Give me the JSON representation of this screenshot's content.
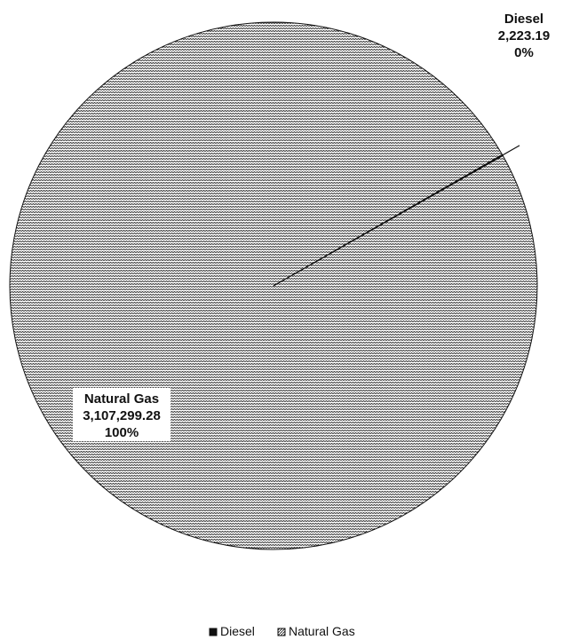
{
  "chart_data": {
    "type": "pie",
    "slices": [
      {
        "name": "Diesel",
        "value": 2223.19,
        "value_label": "2,223.19",
        "percent_label": "0%",
        "fill": "#111111",
        "pattern": "solid"
      },
      {
        "name": "Natural Gas",
        "value": 3107299.28,
        "value_label": "3,107,299.28",
        "percent_label": "100%",
        "fill": "#ffffff",
        "pattern": "horizontal-wave-hatch"
      }
    ],
    "legend": {
      "position": "bottom",
      "items": [
        "Diesel",
        "Natural Gas"
      ]
    },
    "colors": {
      "outline": "#111111",
      "hatch": "#111111",
      "background": "#ffffff"
    }
  }
}
